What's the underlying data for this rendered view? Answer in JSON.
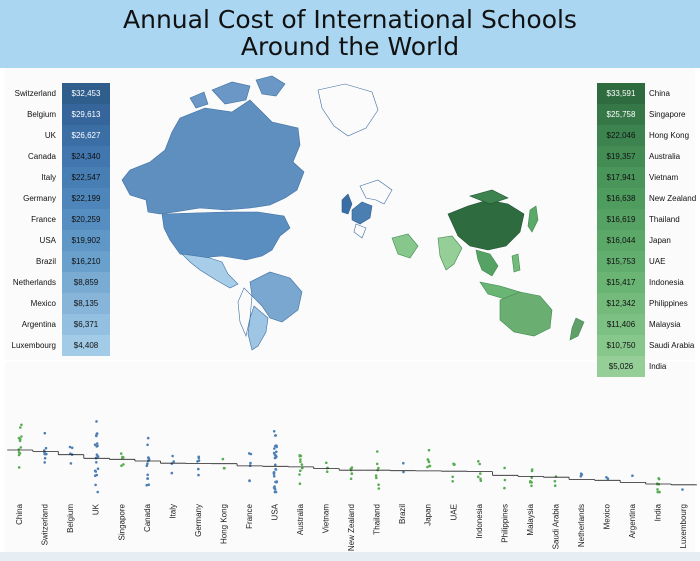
{
  "title_line1": "Annual Cost of International Schools",
  "title_line2": "Around the World",
  "chart_data": [
    {
      "type": "table",
      "name": "left-ranking",
      "rows": [
        {
          "country": "Switzerland",
          "value": "$32,453"
        },
        {
          "country": "Belgium",
          "value": "$29,613"
        },
        {
          "country": "UK",
          "value": "$26,627"
        },
        {
          "country": "Canada",
          "value": "$24,340"
        },
        {
          "country": "Italy",
          "value": "$22,547"
        },
        {
          "country": "Germany",
          "value": "$22,199"
        },
        {
          "country": "France",
          "value": "$20,259"
        },
        {
          "country": "USA",
          "value": "$19,902"
        },
        {
          "country": "Brazil",
          "value": "$16,210"
        },
        {
          "country": "Netherlands",
          "value": "$8,859"
        },
        {
          "country": "Mexico",
          "value": "$8,135"
        },
        {
          "country": "Argentina",
          "value": "$6,371"
        },
        {
          "country": "Luxembourg",
          "value": "$4,408"
        }
      ],
      "colors": [
        "#2f5d8c",
        "#35659a",
        "#3b6ea4",
        "#4176ae",
        "#477fb5",
        "#4e86bb",
        "#568ec1",
        "#5f97c7",
        "#69a0cc",
        "#7aabd3",
        "#87b5da",
        "#93bfe0",
        "#a2cbe7"
      ]
    },
    {
      "type": "table",
      "name": "right-ranking",
      "rows": [
        {
          "country": "China",
          "value": "$33,591"
        },
        {
          "country": "Singapore",
          "value": "$25,758"
        },
        {
          "country": "Hong Kong",
          "value": "$22,046"
        },
        {
          "country": "Australia",
          "value": "$19,357"
        },
        {
          "country": "Vietnam",
          "value": "$17,941"
        },
        {
          "country": "New Zealand",
          "value": "$16,638"
        },
        {
          "country": "Thailand",
          "value": "$16,619"
        },
        {
          "country": "Japan",
          "value": "$16,044"
        },
        {
          "country": "UAE",
          "value": "$15,753"
        },
        {
          "country": "Indonesia",
          "value": "$15,417"
        },
        {
          "country": "Philippines",
          "value": "$12,342"
        },
        {
          "country": "Malaysia",
          "value": "$11,406"
        },
        {
          "country": "Saudi Arabia",
          "value": "$10,750"
        },
        {
          "country": "India",
          "value": "$5,026"
        }
      ],
      "colors": [
        "#2e6b3e",
        "#357747",
        "#3c834f",
        "#438d55",
        "#49955a",
        "#4f9c5f",
        "#55a264",
        "#5ba869",
        "#62ae6e",
        "#6ab474",
        "#73ba7b",
        "#7dc083",
        "#88c78c",
        "#96ce98"
      ]
    },
    {
      "type": "scatter",
      "name": "strip-plot",
      "categories": [
        "China",
        "Switzerland",
        "Belgium",
        "UK",
        "Singapore",
        "Canada",
        "Italy",
        "Germany",
        "Hong Kong",
        "France",
        "USA",
        "Australia",
        "Vietnam",
        "New Zealand",
        "Thailand",
        "Brazil",
        "Japan",
        "UAE",
        "Indonesia",
        "Philippines",
        "Malaysia",
        "Saudi Arabia",
        "Netherlands",
        "Mexico",
        "Argentina",
        "India",
        "Luxembourg"
      ],
      "averages": [
        33591,
        32453,
        29613,
        26627,
        25758,
        24340,
        22547,
        22199,
        22046,
        20259,
        19902,
        19357,
        17941,
        16638,
        16619,
        16210,
        16044,
        15753,
        15417,
        12342,
        11406,
        10750,
        8859,
        8135,
        6371,
        5026,
        4408
      ],
      "region": [
        "asia",
        "europe",
        "europe",
        "europe",
        "asia",
        "americas",
        "europe",
        "europe",
        "asia",
        "europe",
        "americas",
        "asia",
        "asia",
        "asia",
        "asia",
        "americas",
        "asia",
        "asia",
        "asia",
        "asia",
        "asia",
        "asia",
        "europe",
        "americas",
        "americas",
        "asia",
        "europe"
      ],
      "point_counts": [
        12,
        8,
        5,
        22,
        6,
        14,
        4,
        6,
        3,
        6,
        30,
        10,
        4,
        6,
        8,
        2,
        7,
        5,
        6,
        3,
        7,
        3,
        3,
        2,
        1,
        10,
        1
      ],
      "colors": {
        "americas": "#4d7fb3",
        "europe": "#4d7fb3",
        "asia": "#58ad52",
        "line": "#222222"
      }
    }
  ]
}
